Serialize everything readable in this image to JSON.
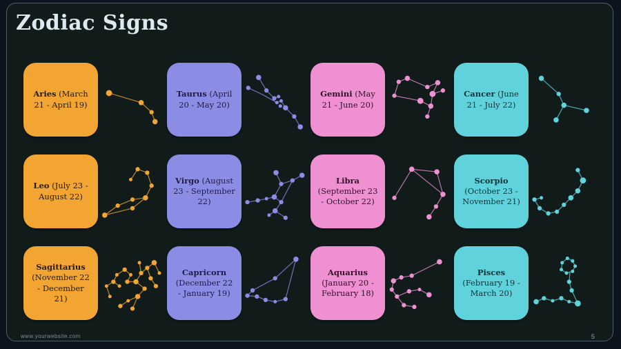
{
  "slide": {
    "title": "Zodiac Signs",
    "footer_url": "www.yourwebsite.com",
    "page_number": "5"
  },
  "colors": {
    "orange": "#F2A533",
    "purple": "#8B8DE5",
    "pink": "#EE90D2",
    "teal": "#5FD2DC",
    "background": "#101B1A",
    "outer_background": "#0C141D",
    "frame_border": "#4E5F6A",
    "title_text": "#DCE9EE"
  },
  "cards": [
    {
      "name": "Aries",
      "dates": "(March 21 - April 19)",
      "color": "orange",
      "icon": "aries-constellation-icon"
    },
    {
      "name": "Taurus",
      "dates": "(April 20 - May 20)",
      "color": "purple",
      "icon": "taurus-constellation-icon"
    },
    {
      "name": "Gemini",
      "dates": "(May 21 - June 20)",
      "color": "pink",
      "icon": "gemini-constellation-icon"
    },
    {
      "name": "Cancer",
      "dates": "(June 21 - July 22)",
      "color": "teal",
      "icon": "cancer-constellation-icon"
    },
    {
      "name": "Leo",
      "dates": "(July 23 - August 22)",
      "color": "orange",
      "icon": "leo-constellation-icon"
    },
    {
      "name": "Virgo",
      "dates": "(August 23 - September 22)",
      "color": "purple",
      "icon": "virgo-constellation-icon"
    },
    {
      "name": "Libra",
      "dates": "(September 23 - October 22)",
      "color": "pink",
      "icon": "libra-constellation-icon"
    },
    {
      "name": "Scorpio",
      "dates": "(October 23 - November 21)",
      "color": "teal",
      "icon": "scorpio-constellation-icon"
    },
    {
      "name": "Sagittarius",
      "dates": "(November 22 - December 21)",
      "color": "orange",
      "icon": "sagittarius-constellation-icon"
    },
    {
      "name": "Capricorn",
      "dates": "(December 22 - January 19)",
      "color": "purple",
      "icon": "capricorn-constellation-icon"
    },
    {
      "name": "Aquarius",
      "dates": "(January 20 - February 18)",
      "color": "pink",
      "icon": "aquarius-constellation-icon"
    },
    {
      "name": "Pisces",
      "dates": "(February 19 - March 20)",
      "color": "teal",
      "icon": "pisces-constellation-icon"
    }
  ]
}
